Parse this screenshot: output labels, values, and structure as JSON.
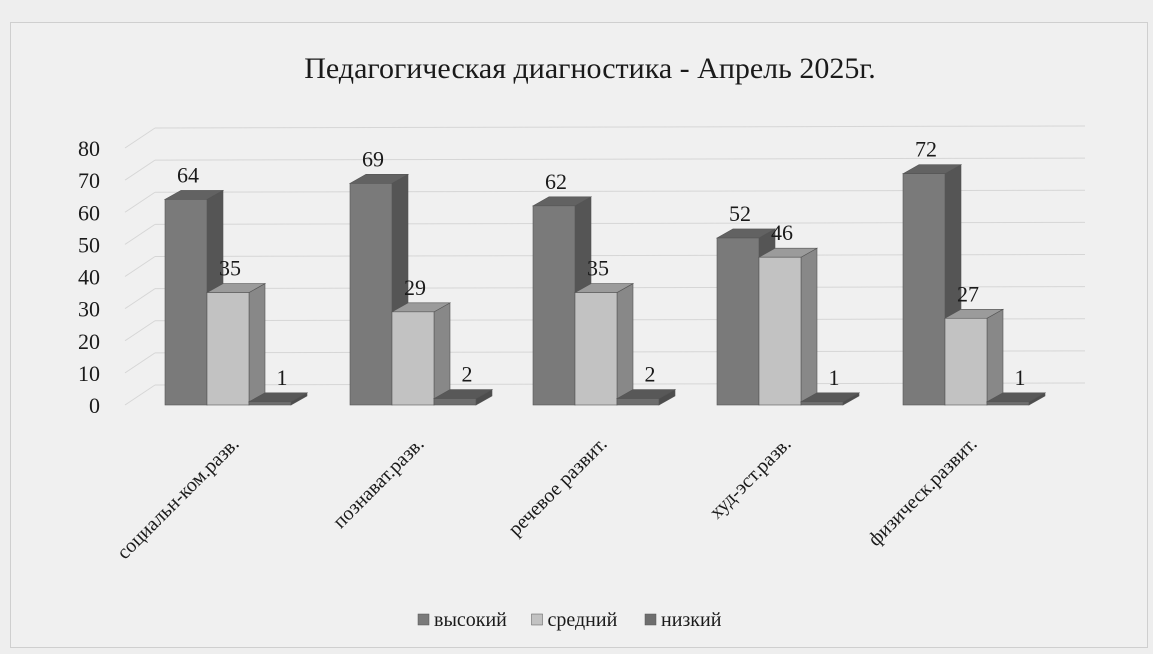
{
  "chart_data": {
    "type": "bar",
    "title": "Педагогическая диагностика - Апрель 2025г.",
    "categories": [
      "социальн-ком.разв.",
      "познават.разв.",
      "речевое развит.",
      "худ-эст.разв.",
      "физическ.развит."
    ],
    "series": [
      {
        "name": "высокий",
        "values": [
          64,
          69,
          62,
          52,
          72
        ],
        "color": "#7a7a7a"
      },
      {
        "name": "средний",
        "values": [
          35,
          29,
          35,
          46,
          27
        ],
        "color": "#c2c2c2"
      },
      {
        "name": "низкий",
        "values": [
          1,
          2,
          2,
          1,
          1
        ],
        "color": "#6e6e6e"
      }
    ],
    "y_ticks": [
      0,
      10,
      20,
      30,
      40,
      50,
      60,
      70,
      80
    ],
    "ylim": [
      0,
      80
    ],
    "grid": true,
    "three_d": true,
    "legend_position": "bottom"
  }
}
